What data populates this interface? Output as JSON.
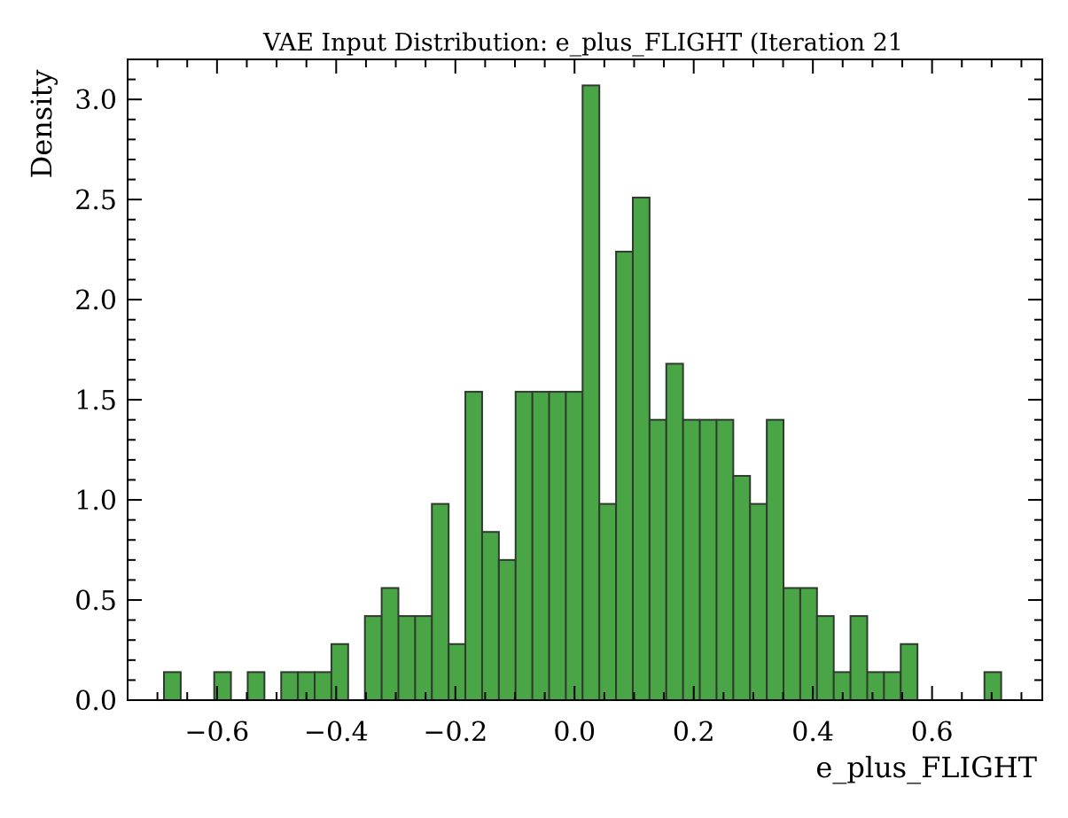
{
  "chart_data": {
    "type": "bar",
    "subtype": "histogram",
    "title": "VAE Input Distribution: e_plus_FLIGHT (Iteration 21",
    "xlabel": "e_plus_FLIGHT",
    "ylabel": "Density",
    "xlim": [
      -0.75,
      0.785
    ],
    "ylim": [
      0,
      3.2
    ],
    "x_ticks": [
      -0.6,
      -0.4,
      -0.2,
      0.0,
      0.2,
      0.4,
      0.6
    ],
    "x_tick_labels": [
      "−0.6",
      "−0.4",
      "−0.2",
      "0.0",
      "0.2",
      "0.4",
      "0.6"
    ],
    "y_ticks": [
      0.0,
      0.5,
      1.0,
      1.5,
      2.0,
      2.5,
      3.0
    ],
    "y_tick_labels": [
      "0.0",
      "0.5",
      "1.0",
      "1.5",
      "2.0",
      "2.5",
      "3.0"
    ],
    "bin_start": -0.689,
    "bin_width": 0.0281,
    "values": [
      0.14,
      0,
      0,
      0.14,
      0,
      0.14,
      0,
      0.14,
      0.14,
      0.14,
      0.28,
      0,
      0.42,
      0.56,
      0.42,
      0.42,
      0.98,
      0.28,
      1.54,
      0.84,
      0.7,
      1.54,
      1.54,
      1.54,
      1.54,
      3.07,
      0.98,
      2.24,
      2.51,
      1.4,
      1.68,
      1.4,
      1.4,
      1.4,
      1.12,
      0.98,
      1.4,
      0.56,
      0.56,
      0.42,
      0.14,
      0.42,
      0.14,
      0.14,
      0.28,
      0,
      0,
      0,
      0,
      0.14
    ],
    "bar_color": "#4aa546",
    "edge_color": "#2f3a2f",
    "grid": false,
    "legend": "none"
  }
}
